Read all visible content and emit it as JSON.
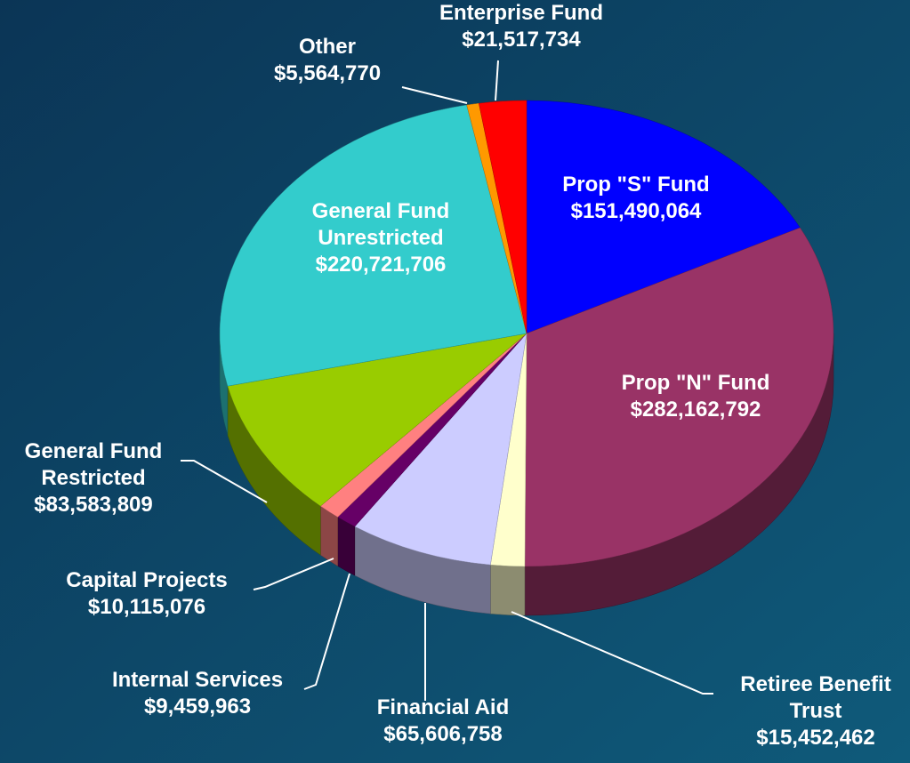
{
  "chart_data": {
    "type": "pie3d",
    "categories": [
      "Prop \"S\" Fund",
      "Prop \"N\" Fund",
      "Retiree Benefit\nTrust",
      "Financial Aid",
      "Internal Services",
      "Capital Projects",
      "General Fund\nRestricted",
      "General Fund\nUnrestricted",
      "Other",
      "Enterprise Fund"
    ],
    "values": [
      151490064,
      282162792,
      15452462,
      65606758,
      9459963,
      10115076,
      83583809,
      220721706,
      5564770,
      21517734
    ],
    "value_labels": [
      "$151,490,064",
      "$282,162,792",
      "$15,452,462",
      "$65,606,758",
      "$9,459,963",
      "$10,115,076",
      "$83,583,809",
      "$220,721,706",
      "$5,564,770",
      "$21,517,734"
    ],
    "colors": [
      "#0000ff",
      "#993366",
      "#ffffcc",
      "#ccccff",
      "#660066",
      "#ff8080",
      "#99cc00",
      "#33cccc",
      "#ff9900",
      "#ff0000"
    ]
  }
}
